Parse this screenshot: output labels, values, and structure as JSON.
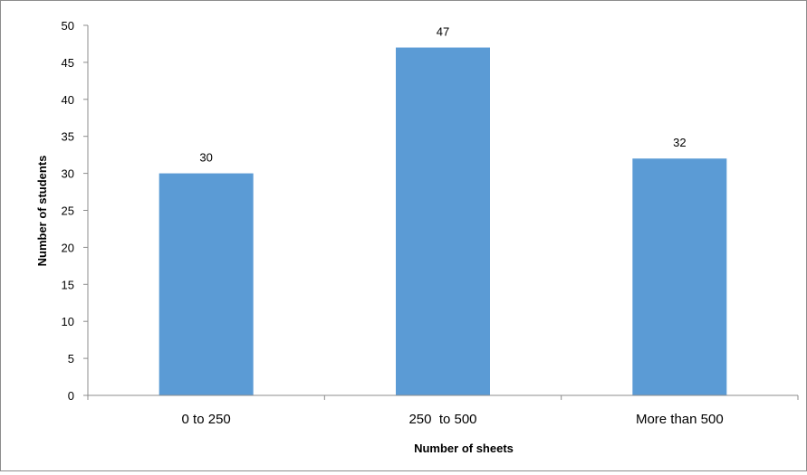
{
  "chart_data": {
    "type": "bar",
    "categories": [
      "0 to 250",
      "250  to 500",
      "More than 500"
    ],
    "values": [
      30,
      47,
      32
    ],
    "data_labels": [
      "30",
      "47",
      "32"
    ],
    "title": "",
    "xlabel": "Number of sheets",
    "ylabel": "Number of students",
    "ylim": [
      0,
      50
    ],
    "yticks": [
      0,
      5,
      10,
      15,
      20,
      25,
      30,
      35,
      40,
      45,
      50
    ],
    "grid": false,
    "legend": "none",
    "bar_color": "#5b9bd5"
  }
}
